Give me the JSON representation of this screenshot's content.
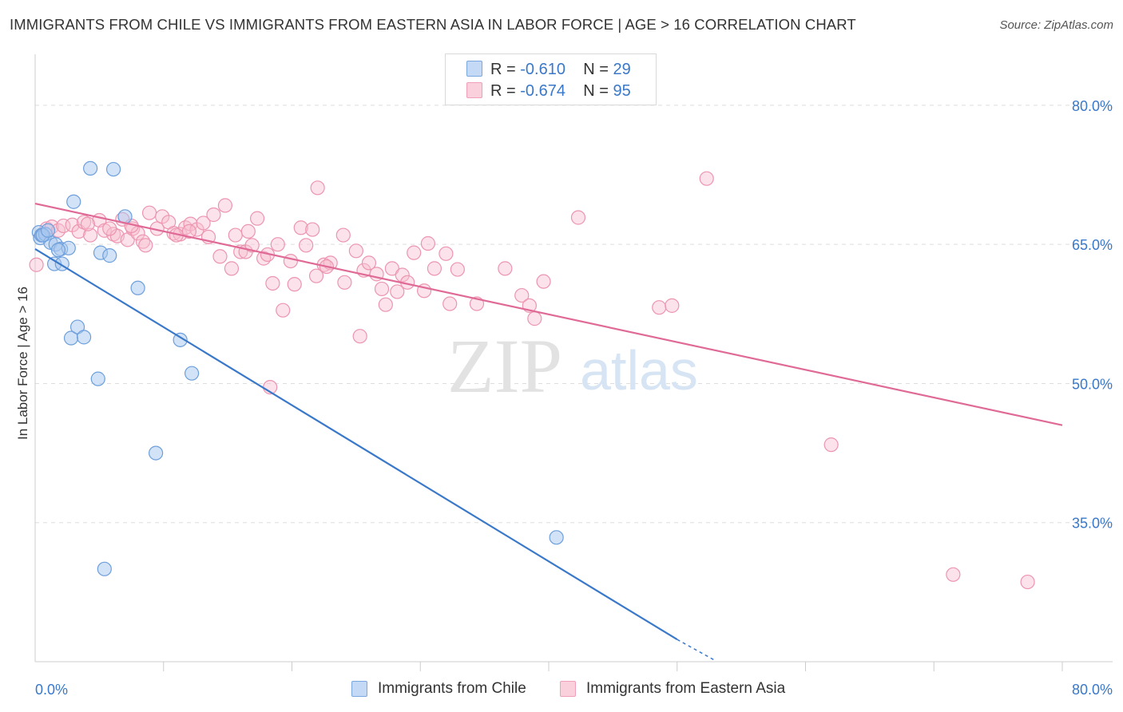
{
  "title": "IMMIGRANTS FROM CHILE VS IMMIGRANTS FROM EASTERN ASIA IN LABOR FORCE | AGE > 16 CORRELATION CHART",
  "source": "Source: ZipAtlas.com",
  "watermark": {
    "zip": "ZIP",
    "atlas": "atlas"
  },
  "colors": {
    "chile_fill": "#a8c8f0",
    "chile_stroke": "#6d9fdb",
    "chile_line": "#3a78c9",
    "asia_fill": "#f8bfd0",
    "asia_stroke": "#ec95b0",
    "asia_line": "#e06a96",
    "grid": "#dddddd",
    "axis_label": "#3a78c9"
  },
  "legend": {
    "rows": [
      {
        "r_label": "R =",
        "r_value": "-0.610",
        "n_label": "N =",
        "n_value": "29"
      },
      {
        "r_label": "R =",
        "r_value": "-0.674",
        "n_label": "N =",
        "n_value": "95"
      }
    ]
  },
  "bottom_legend": {
    "chile": "Immigrants from Chile",
    "asia": "Immigrants from Eastern Asia"
  },
  "chart_data": {
    "type": "scatter",
    "title": "IMMIGRANTS FROM CHILE VS IMMIGRANTS FROM EASTERN ASIA IN LABOR FORCE | AGE > 16 CORRELATION CHART",
    "xlabel": "",
    "ylabel": "In Labor Force | Age > 16",
    "xlim": [
      0,
      80
    ],
    "ylim": [
      20,
      85.5
    ],
    "x_tick_labels": [
      "0.0%",
      "80.0%"
    ],
    "y_ticks": [
      35,
      50,
      65,
      80
    ],
    "y_tick_labels": [
      "35.0%",
      "50.0%",
      "65.0%",
      "80.0%"
    ],
    "grid": true,
    "series": [
      {
        "name": "Immigrants from Chile",
        "points": [
          [
            0.3,
            66.3
          ],
          [
            0.4,
            65.7
          ],
          [
            0.5,
            66.0
          ],
          [
            0.8,
            66.1
          ],
          [
            1.2,
            65.2
          ],
          [
            1.6,
            65.0
          ],
          [
            1.5,
            62.9
          ],
          [
            2.1,
            62.9
          ],
          [
            2.0,
            64.5
          ],
          [
            2.6,
            64.6
          ],
          [
            3.0,
            69.6
          ],
          [
            4.3,
            73.2
          ],
          [
            6.1,
            73.1
          ],
          [
            5.1,
            64.1
          ],
          [
            5.8,
            63.8
          ],
          [
            7.0,
            68.0
          ],
          [
            2.8,
            54.9
          ],
          [
            3.3,
            56.1
          ],
          [
            3.8,
            55.0
          ],
          [
            4.9,
            50.5
          ],
          [
            8.0,
            60.3
          ],
          [
            11.3,
            54.7
          ],
          [
            12.2,
            51.1
          ],
          [
            9.4,
            42.5
          ],
          [
            5.4,
            30.0
          ],
          [
            40.6,
            33.4
          ],
          [
            0.6,
            66.0
          ],
          [
            1.0,
            66.5
          ],
          [
            1.8,
            64.4
          ]
        ],
        "trend": {
          "x_start": 0.0,
          "y_start": 64.5,
          "x_end": 50.0,
          "y_end": 22.4,
          "dash_to_x": 53.0,
          "dash_to_y": 20.1
        }
      },
      {
        "name": "Immigrants from Eastern Asia",
        "points": [
          [
            0.1,
            62.8
          ],
          [
            0.5,
            66.0
          ],
          [
            0.9,
            66.7
          ],
          [
            1.3,
            66.9
          ],
          [
            1.8,
            66.5
          ],
          [
            2.2,
            67.0
          ],
          [
            2.9,
            67.1
          ],
          [
            3.4,
            66.4
          ],
          [
            3.8,
            67.4
          ],
          [
            4.3,
            66.0
          ],
          [
            5.0,
            67.6
          ],
          [
            5.4,
            66.5
          ],
          [
            6.1,
            66.1
          ],
          [
            6.4,
            65.9
          ],
          [
            6.8,
            67.7
          ],
          [
            7.2,
            65.5
          ],
          [
            7.6,
            66.7
          ],
          [
            8.0,
            66.2
          ],
          [
            8.4,
            65.3
          ],
          [
            8.9,
            68.4
          ],
          [
            9.5,
            66.7
          ],
          [
            9.9,
            68.0
          ],
          [
            10.4,
            67.4
          ],
          [
            10.8,
            66.2
          ],
          [
            11.3,
            66.1
          ],
          [
            11.7,
            66.8
          ],
          [
            12.1,
            67.2
          ],
          [
            12.6,
            66.6
          ],
          [
            13.1,
            67.3
          ],
          [
            13.5,
            65.8
          ],
          [
            13.9,
            68.2
          ],
          [
            14.4,
            63.7
          ],
          [
            14.8,
            69.2
          ],
          [
            15.3,
            62.4
          ],
          [
            15.6,
            66.0
          ],
          [
            16.0,
            64.2
          ],
          [
            16.4,
            64.2
          ],
          [
            16.9,
            64.9
          ],
          [
            17.3,
            67.8
          ],
          [
            17.8,
            63.5
          ],
          [
            18.1,
            63.9
          ],
          [
            18.5,
            60.8
          ],
          [
            18.9,
            65.0
          ],
          [
            19.3,
            57.9
          ],
          [
            19.9,
            63.2
          ],
          [
            20.2,
            60.7
          ],
          [
            20.7,
            66.8
          ],
          [
            21.1,
            64.9
          ],
          [
            21.6,
            66.6
          ],
          [
            21.9,
            61.6
          ],
          [
            22.0,
            71.1
          ],
          [
            22.5,
            62.8
          ],
          [
            23.0,
            63.0
          ],
          [
            24.1,
            60.9
          ],
          [
            24.0,
            66.0
          ],
          [
            25.0,
            64.3
          ],
          [
            25.6,
            62.2
          ],
          [
            26.0,
            63.0
          ],
          [
            26.6,
            61.8
          ],
          [
            27.0,
            60.2
          ],
          [
            27.3,
            58.5
          ],
          [
            27.8,
            62.4
          ],
          [
            28.2,
            59.9
          ],
          [
            28.6,
            61.7
          ],
          [
            29.0,
            60.9
          ],
          [
            29.5,
            64.1
          ],
          [
            30.3,
            60.0
          ],
          [
            31.1,
            62.4
          ],
          [
            32.0,
            64.0
          ],
          [
            32.3,
            58.6
          ],
          [
            32.9,
            62.3
          ],
          [
            34.4,
            58.6
          ],
          [
            36.6,
            62.4
          ],
          [
            37.9,
            59.5
          ],
          [
            38.5,
            58.4
          ],
          [
            38.9,
            57.0
          ],
          [
            39.6,
            61.0
          ],
          [
            42.3,
            67.9
          ],
          [
            48.6,
            58.2
          ],
          [
            49.6,
            58.4
          ],
          [
            52.3,
            72.1
          ],
          [
            25.3,
            55.1
          ],
          [
            18.3,
            49.6
          ],
          [
            62.0,
            43.4
          ],
          [
            71.5,
            29.4
          ],
          [
            77.3,
            28.6
          ],
          [
            4.1,
            67.2
          ],
          [
            8.6,
            64.9
          ],
          [
            12.0,
            66.4
          ],
          [
            5.8,
            66.7
          ],
          [
            7.5,
            67.0
          ],
          [
            11.0,
            66.0
          ],
          [
            16.6,
            66.4
          ],
          [
            22.7,
            62.6
          ],
          [
            30.6,
            65.1
          ]
        ],
        "trend": {
          "x_start": 0.0,
          "y_start": 69.4,
          "x_end": 80.0,
          "y_end": 45.5
        }
      }
    ]
  }
}
